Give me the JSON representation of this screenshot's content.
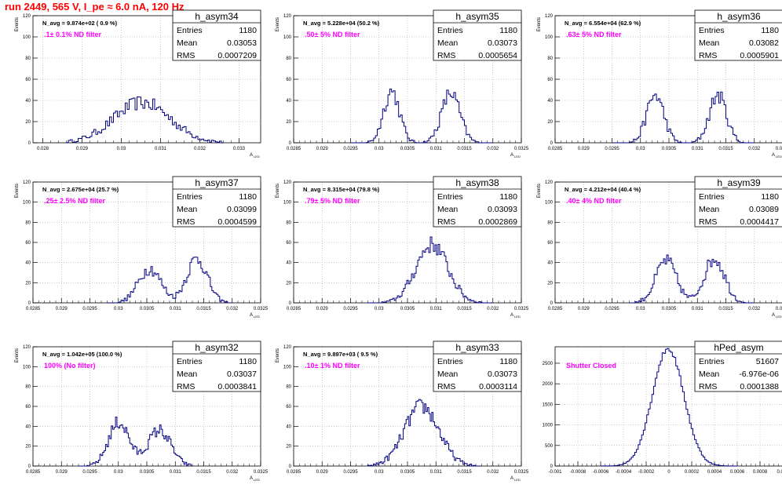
{
  "title": "run 2449,   565 V, I_pe ≈ 6.0 nA, 120 Hz",
  "chart_data": [
    {
      "type": "histogram",
      "name": "h_asym34",
      "xlim": [
        0.02775,
        0.03355
      ],
      "ylim": [
        0,
        120
      ],
      "xticks": [
        0.028,
        0.029,
        0.03,
        0.031,
        0.032,
        0.033
      ],
      "xtick_labels": [
        "0.028",
        "0.029",
        "0.03",
        "0.031",
        "0.032",
        "0.033"
      ],
      "yticks": [
        0,
        20,
        40,
        60,
        80,
        100,
        120
      ],
      "xlabel": "A",
      "xlabel_sub": "LED",
      "ylabel": "Events",
      "navg": "N_avg = 9.874e+02 ( 0.9 %)",
      "label": ".1± 0.1% ND filter",
      "stats": {
        "Entries": "1180",
        "Mean": "0.03053",
        "RMS": "0.0007209"
      },
      "peaks": [
        [
          0.03053,
          38,
          0.00072
        ]
      ],
      "range": [
        0.0286,
        0.0326
      ]
    },
    {
      "type": "histogram",
      "name": "h_asym35",
      "xlim": [
        0.0285,
        0.0325
      ],
      "ylim": [
        0,
        120
      ],
      "xticks": [
        0.0285,
        0.029,
        0.0295,
        0.03,
        0.0305,
        0.031,
        0.0315,
        0.032,
        0.0325
      ],
      "xtick_labels": [
        "0.0285",
        "0.029",
        "0.0295",
        "0.03",
        "0.0305",
        "0.031",
        "0.0315",
        "0.032",
        "0.0325"
      ],
      "yticks": [
        0,
        20,
        40,
        60,
        80,
        100,
        120
      ],
      "xlabel": "A",
      "xlabel_sub": "LED",
      "ylabel": "Events",
      "navg": "N_avg = 5.228e+04 (50.2 %)",
      "label": ".50± 5% ND filter",
      "stats": {
        "Entries": "1180",
        "Mean": "0.03073",
        "RMS": "0.0005654"
      },
      "peaks": [
        [
          0.03022,
          49,
          0.00014
        ],
        [
          0.03126,
          47,
          0.00016
        ]
      ],
      "range": [
        0.0295,
        0.032
      ]
    },
    {
      "type": "histogram",
      "name": "h_asym36",
      "xlim": [
        0.0285,
        0.0325
      ],
      "ylim": [
        0,
        120
      ],
      "xticks": [
        0.0285,
        0.029,
        0.0295,
        0.03,
        0.0305,
        0.031,
        0.0315,
        0.032,
        0.0325
      ],
      "xtick_labels": [
        "0.0285",
        "0.029",
        "0.0295",
        "0.03",
        "0.0305",
        "0.031",
        "0.0315",
        "0.032",
        "0.0325"
      ],
      "yticks": [
        0,
        20,
        40,
        60,
        80,
        100,
        120
      ],
      "xlabel": "A",
      "xlabel_sub": "LED",
      "ylabel": "Events",
      "navg": "N_avg = 6.554e+04 (62.9 %)",
      "label": ".63± 5% ND filter",
      "stats": {
        "Entries": "1180",
        "Mean": "0.03082",
        "RMS": "0.0005901"
      },
      "peaks": [
        [
          0.03026,
          45,
          0.00015
        ],
        [
          0.03136,
          45,
          0.00015
        ]
      ],
      "range": [
        0.0295,
        0.032
      ]
    },
    {
      "type": "histogram",
      "name": "h_asym37",
      "xlim": [
        0.0285,
        0.0325
      ],
      "ylim": [
        0,
        120
      ],
      "xticks": [
        0.0285,
        0.029,
        0.0295,
        0.03,
        0.0305,
        0.031,
        0.0315,
        0.032,
        0.0325
      ],
      "xtick_labels": [
        "0.0285",
        "0.029",
        "0.0295",
        "0.03",
        "0.0305",
        "0.031",
        "0.0315",
        "0.032",
        "0.0325"
      ],
      "yticks": [
        0,
        20,
        40,
        60,
        80,
        100,
        120
      ],
      "xlabel": "A",
      "xlabel_sub": "LED",
      "ylabel": "Events",
      "navg": "N_avg = 2.675e+04 (25.7 %)",
      "label": ".25± 2.5% ND filter",
      "stats": {
        "Entries": "1180",
        "Mean": "0.03099",
        "RMS": "0.0004599"
      },
      "peaks": [
        [
          0.03055,
          34,
          0.0002
        ],
        [
          0.03138,
          44,
          0.00018
        ]
      ],
      "range": [
        0.0298,
        0.032
      ]
    },
    {
      "type": "histogram",
      "name": "h_asym38",
      "xlim": [
        0.0285,
        0.0325
      ],
      "ylim": [
        0,
        120
      ],
      "xticks": [
        0.0285,
        0.029,
        0.0295,
        0.03,
        0.0305,
        0.031,
        0.0315,
        0.032,
        0.0325
      ],
      "xtick_labels": [
        "0.0285",
        "0.029",
        "0.0295",
        "0.03",
        "0.0305",
        "0.031",
        "0.0315",
        "0.032",
        "0.0325"
      ],
      "yticks": [
        0,
        20,
        40,
        60,
        80,
        100,
        120
      ],
      "xlabel": "A",
      "xlabel_sub": "LED",
      "ylabel": "Events",
      "navg": "N_avg = 8.315e+04 (79.8 %)",
      "label": ".79± 5% ND filter",
      "stats": {
        "Entries": "1180",
        "Mean": "0.03093",
        "RMS": "0.0002869"
      },
      "peaks": [
        [
          0.03093,
          58,
          0.00028
        ]
      ],
      "range": [
        0.0298,
        0.032
      ]
    },
    {
      "type": "histogram",
      "name": "h_asym39",
      "xlim": [
        0.0285,
        0.0325
      ],
      "ylim": [
        0,
        120
      ],
      "xticks": [
        0.0285,
        0.029,
        0.0295,
        0.03,
        0.0305,
        0.031,
        0.0315,
        0.032,
        0.0325
      ],
      "xtick_labels": [
        "0.0285",
        "0.029",
        "0.0295",
        "0.03",
        "0.0305",
        "0.031",
        "0.0315",
        "0.032",
        "0.0325"
      ],
      "yticks": [
        0,
        20,
        40,
        60,
        80,
        100,
        120
      ],
      "xlabel": "A",
      "xlabel_sub": "LED",
      "ylabel": "Events",
      "navg": "N_avg = 4.212e+04 (40.4 %)",
      "label": ".40± 4% ND filter",
      "stats": {
        "Entries": "1180",
        "Mean": "0.03089",
        "RMS": "0.0004417"
      },
      "peaks": [
        [
          0.03045,
          42,
          0.00018
        ],
        [
          0.0313,
          44,
          0.00018
        ]
      ],
      "range": [
        0.0298,
        0.032
      ]
    },
    {
      "type": "histogram",
      "name": "h_asym32",
      "xlim": [
        0.0285,
        0.0325
      ],
      "ylim": [
        0,
        120
      ],
      "xticks": [
        0.0285,
        0.029,
        0.0295,
        0.03,
        0.0305,
        0.031,
        0.0315,
        0.032,
        0.0325
      ],
      "xtick_labels": [
        "0.0285",
        "0.029",
        "0.0295",
        "0.03",
        "0.0305",
        "0.031",
        "0.0315",
        "0.032",
        "0.0325"
      ],
      "yticks": [
        0,
        20,
        40,
        60,
        80,
        100,
        120
      ],
      "xlabel": "A",
      "xlabel_sub": "LED",
      "ylabel": "Events",
      "navg": "N_avg = 1.042e+05 (100.0 %)",
      "label": "100% (No filter)",
      "stats": {
        "Entries": "1180",
        "Mean": "0.03037",
        "RMS": "0.0003841"
      },
      "peaks": [
        [
          0.03001,
          44,
          0.00018
        ],
        [
          0.03072,
          36,
          0.0002
        ]
      ],
      "range": [
        0.0293,
        0.0313
      ]
    },
    {
      "type": "histogram",
      "name": "h_asym33",
      "xlim": [
        0.0285,
        0.0325
      ],
      "ylim": [
        0,
        120
      ],
      "xticks": [
        0.0285,
        0.029,
        0.0295,
        0.03,
        0.0305,
        0.031,
        0.0315,
        0.032,
        0.0325
      ],
      "xtick_labels": [
        "0.0285",
        "0.029",
        "0.0295",
        "0.03",
        "0.0305",
        "0.031",
        "0.0315",
        "0.032",
        "0.0325"
      ],
      "yticks": [
        0,
        20,
        40,
        60,
        80,
        100,
        120
      ],
      "xlabel": "A",
      "xlabel_sub": "LED",
      "ylabel": "Events",
      "navg": "N_avg = 9.897e+03 ( 9.5 %)",
      "label": ".10± 1% ND filter",
      "stats": {
        "Entries": "1180",
        "Mean": "0.03073",
        "RMS": "0.0003114"
      },
      "peaks": [
        [
          0.03075,
          60,
          0.0003
        ]
      ],
      "range": [
        0.0298,
        0.0318
      ]
    },
    {
      "type": "histogram",
      "name": "hPed_asym",
      "xlim": [
        -0.001,
        0.001
      ],
      "ylim": [
        0,
        2900
      ],
      "xticks": [
        -0.001,
        -0.0008,
        -0.0006,
        -0.0004,
        -0.0002,
        0,
        0.0002,
        0.0004,
        0.0006,
        0.0008,
        0.001
      ],
      "xtick_labels": [
        "-0.001",
        "-0.0008",
        "-0.0006",
        "-0.0004",
        "-0.0002",
        "0",
        "0.0002",
        "0.0004",
        "0.0006",
        "0.0008",
        "0.001"
      ],
      "yticks": [
        0,
        500,
        1000,
        1500,
        2000,
        2500
      ],
      "xlabel": "",
      "xlabel_sub": "",
      "ylabel": "",
      "navg": "",
      "label": "Shutter Closed",
      "stats": {
        "Entries": "51607",
        "Mean": "-6.976e-06",
        "RMS": "0.0001388"
      },
      "peaks": [
        [
          -7e-06,
          2850,
          0.0001388
        ]
      ],
      "range": [
        -0.0006,
        0.0006
      ]
    }
  ]
}
